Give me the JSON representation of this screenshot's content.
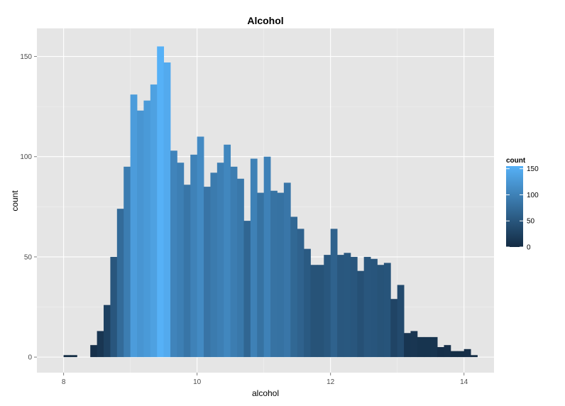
{
  "chart_data": {
    "type": "bar",
    "title": "Alcohol",
    "xlabel": "alcohol",
    "ylabel": "count",
    "binwidth": 0.1,
    "x": [
      8.0,
      8.1,
      8.2,
      8.3,
      8.4,
      8.5,
      8.6,
      8.7,
      8.8,
      8.9,
      9.0,
      9.1,
      9.2,
      9.3,
      9.4,
      9.5,
      9.6,
      9.7,
      9.8,
      9.9,
      10.0,
      10.1,
      10.2,
      10.3,
      10.4,
      10.5,
      10.6,
      10.7,
      10.8,
      10.9,
      11.0,
      11.1,
      11.2,
      11.3,
      11.4,
      11.5,
      11.6,
      11.7,
      11.8,
      11.9,
      12.0,
      12.1,
      12.2,
      12.3,
      12.4,
      12.5,
      12.6,
      12.7,
      12.8,
      12.9,
      13.0,
      13.1,
      13.2,
      13.3,
      13.4,
      13.5,
      13.6,
      13.7,
      13.8,
      13.9,
      14.0,
      14.1
    ],
    "values": [
      1,
      1,
      0,
      0,
      6,
      13,
      26,
      50,
      74,
      95,
      131,
      123,
      128,
      136,
      155,
      147,
      103,
      97,
      86,
      101,
      110,
      85,
      92,
      97,
      106,
      95,
      89,
      68,
      99,
      82,
      100,
      83,
      82,
      87,
      70,
      64,
      54,
      46,
      46,
      51,
      64,
      51,
      52,
      50,
      43,
      50,
      49,
      46,
      47,
      29,
      36,
      12,
      13,
      10,
      10,
      10,
      5,
      6,
      3,
      3,
      4,
      1
    ],
    "xlim": [
      7.6,
      14.45
    ],
    "ylim": [
      -7.75,
      164
    ],
    "x_ticks": [
      8,
      10,
      12,
      14
    ],
    "y_ticks": [
      0,
      50,
      100,
      150
    ],
    "x_tick_labels": [
      "8",
      "10",
      "12",
      "14"
    ],
    "y_tick_labels": [
      "0",
      "50",
      "100",
      "150"
    ],
    "grid": true,
    "legend": {
      "title": "count",
      "placement": "right",
      "labels": [
        "150",
        "100",
        "50",
        "0"
      ],
      "breaks": [
        150,
        100,
        50,
        0
      ],
      "range": [
        0,
        155
      ]
    },
    "colors": {
      "panel_background": "#e5e5e5",
      "grid_major": "#ffffff",
      "grid_minor": "#f2f2f2",
      "low": "#132b43",
      "high": "#56b1f7"
    }
  }
}
